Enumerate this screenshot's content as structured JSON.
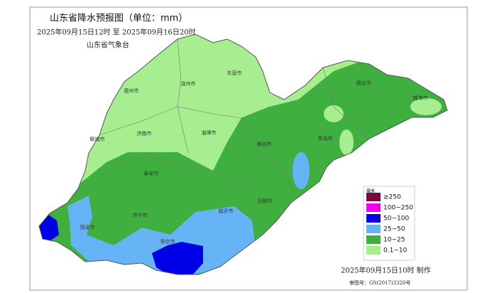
{
  "header": {
    "title": "山东省降水预报图（单位：mm）",
    "period": "2025年09月15日12时  至  2025年09月16日20时",
    "agency": "山东省气象台"
  },
  "legend": {
    "title": "毫米",
    "items": [
      {
        "label": "≥250",
        "color": "#7a0a3c"
      },
      {
        "label": "100~250",
        "color": "#f000f0"
      },
      {
        "label": "50~100",
        "color": "#0000e6"
      },
      {
        "label": "25~50",
        "color": "#66b3f5"
      },
      {
        "label": "10~25",
        "color": "#3fb040"
      },
      {
        "label": "0.1~10",
        "color": "#a6ee90"
      }
    ]
  },
  "cities": [
    "德州市",
    "滨州市",
    "东营市",
    "烟台市",
    "威海市",
    "聊城市",
    "济南市",
    "淄博市",
    "潍坊市",
    "青岛市",
    "泰安市",
    "日照市",
    "临沂市",
    "济宁市",
    "枣庄市",
    "菏泽市"
  ],
  "footer": {
    "made": "2025年09月15日10时 制作",
    "approval": "审图号：GS(2017)3320号"
  }
}
